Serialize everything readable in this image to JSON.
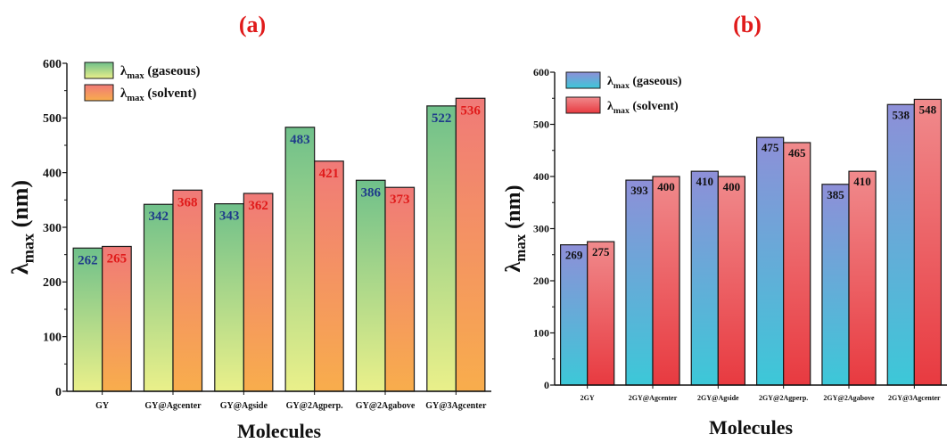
{
  "chart_data": [
    {
      "panel_label": "(a)",
      "type": "bar",
      "categories": [
        "GY",
        "GY@Agcenter",
        "GY@Agside",
        "GY@2Agperp.",
        "GY@2Agabove",
        "GY@3Agcenter"
      ],
      "series": [
        {
          "name": "λmax (gaseous)",
          "legend_main": "λ",
          "legend_sub": "max",
          "legend_rest": " (gaseous)",
          "values": [
            262,
            342,
            343,
            483,
            386,
            522
          ]
        },
        {
          "name": "λmax (solvent)",
          "legend_main": "λ",
          "legend_sub": "max",
          "legend_rest": " (solvent)",
          "values": [
            265,
            368,
            362,
            421,
            373,
            536
          ]
        }
      ],
      "xlabel": "Molecules",
      "ylabel": "λmax (nm)",
      "ylabel_main": "λ",
      "ylabel_sub": "max",
      "ylabel_rest": " (nm)",
      "ylim": [
        0,
        600
      ],
      "yticks": [
        0,
        100,
        200,
        300,
        400,
        500,
        600
      ],
      "legend_position": "top-left",
      "grid": false,
      "colors": {
        "gaseous_top": "#6fc08a",
        "gaseous_bottom": "#eaf08a",
        "solvent_top": "#f07a78",
        "solvent_bottom": "#f8ad4c",
        "label_gaseous": "#1f3b8a",
        "label_solvent": "#e01b1b",
        "panel_label": "#e01b1b"
      }
    },
    {
      "panel_label": "(b)",
      "type": "bar",
      "categories": [
        "2GY",
        "2GY@Agcenter",
        "2GY@Agside",
        "2GY@2Agperp.",
        "2GY@2Agabove",
        "2GY@3Agcenter"
      ],
      "series": [
        {
          "name": "λmax (gaseous)",
          "legend_main": "λ",
          "legend_sub": "max",
          "legend_rest": " (gaseous)",
          "values": [
            269,
            393,
            410,
            475,
            385,
            538
          ]
        },
        {
          "name": "λmax (solvent)",
          "legend_main": "λ",
          "legend_sub": "max",
          "legend_rest": " (solvent)",
          "values": [
            275,
            400,
            400,
            465,
            410,
            548
          ]
        }
      ],
      "xlabel": "Molecules",
      "ylabel": "λmax (nm)",
      "ylabel_main": "λ",
      "ylabel_sub": "max",
      "ylabel_rest": " (nm)",
      "ylim": [
        0,
        600
      ],
      "yticks": [
        0,
        100,
        200,
        300,
        400,
        500,
        600
      ],
      "legend_position": "top-left",
      "grid": false,
      "colors": {
        "gaseous_top": "#8e8fd8",
        "gaseous_bottom": "#3cc8d8",
        "solvent_top": "#f08a8c",
        "solvent_bottom": "#e83a40",
        "label_gaseous": "#111111",
        "label_solvent": "#111111",
        "panel_label": "#e01b1b"
      }
    }
  ]
}
